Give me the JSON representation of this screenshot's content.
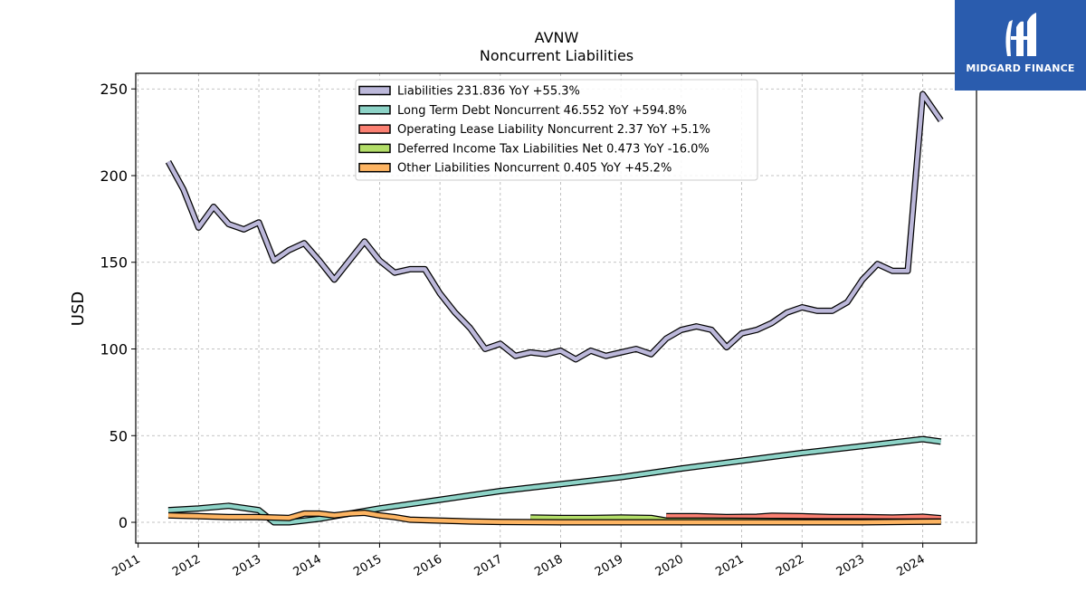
{
  "brand": {
    "name": "MIDGARD FINANCE",
    "bg_color": "#2a5cae"
  },
  "chart_data": {
    "type": "line",
    "title": "AVNW",
    "subtitle": "Noncurrent  Liabilities",
    "ylabel": "USD",
    "xlabel": "",
    "ylim": [
      -12,
      259
    ],
    "xlim": [
      2010.96,
      2024.89
    ],
    "yticks": [
      0,
      50,
      100,
      150,
      200,
      250
    ],
    "xticks": [
      2011,
      2012,
      2013,
      2014,
      2015,
      2016,
      2017,
      2018,
      2019,
      2020,
      2021,
      2022,
      2023,
      2024
    ],
    "grid": true,
    "legend_position": "upper center",
    "series": [
      {
        "name": "Liabilities",
        "legend": "Liabilities  231.836 YoY +55.3%",
        "color": "#bcb8da",
        "points": [
          [
            2011.5,
            208
          ],
          [
            2011.75,
            192
          ],
          [
            2012.0,
            170
          ],
          [
            2012.25,
            182
          ],
          [
            2012.5,
            172
          ],
          [
            2012.75,
            169
          ],
          [
            2013.0,
            173
          ],
          [
            2013.25,
            151
          ],
          [
            2013.5,
            157
          ],
          [
            2013.75,
            161
          ],
          [
            2014.0,
            151
          ],
          [
            2014.25,
            140
          ],
          [
            2014.5,
            151
          ],
          [
            2014.75,
            162
          ],
          [
            2015.0,
            151
          ],
          [
            2015.25,
            144
          ],
          [
            2015.5,
            146
          ],
          [
            2015.75,
            146
          ],
          [
            2016.0,
            132
          ],
          [
            2016.25,
            121
          ],
          [
            2016.5,
            112
          ],
          [
            2016.75,
            100
          ],
          [
            2017.0,
            103
          ],
          [
            2017.25,
            96
          ],
          [
            2017.5,
            98
          ],
          [
            2017.75,
            97
          ],
          [
            2018.0,
            99
          ],
          [
            2018.25,
            94
          ],
          [
            2018.5,
            99
          ],
          [
            2018.75,
            96
          ],
          [
            2019.0,
            98
          ],
          [
            2019.25,
            100
          ],
          [
            2019.5,
            97
          ],
          [
            2019.75,
            106
          ],
          [
            2020.0,
            111
          ],
          [
            2020.25,
            113
          ],
          [
            2020.5,
            111
          ],
          [
            2020.75,
            101
          ],
          [
            2021.0,
            109
          ],
          [
            2021.25,
            111
          ],
          [
            2021.5,
            115
          ],
          [
            2021.75,
            121
          ],
          [
            2022.0,
            124
          ],
          [
            2022.25,
            122
          ],
          [
            2022.5,
            122
          ],
          [
            2022.75,
            127
          ],
          [
            2023.0,
            140
          ],
          [
            2023.25,
            149
          ],
          [
            2023.5,
            145
          ],
          [
            2023.75,
            145
          ],
          [
            2024.0,
            247
          ],
          [
            2024.3,
            231.836
          ]
        ]
      },
      {
        "name": "Long Term Debt Noncurrent",
        "legend": "Long Term Debt Noncurrent  46.552 YoY +594.8%",
        "color": "#8dd3c7",
        "points": [
          [
            2011.5,
            7
          ],
          [
            2012.0,
            8
          ],
          [
            2012.5,
            9.5
          ],
          [
            2013.0,
            7
          ],
          [
            2013.25,
            0
          ],
          [
            2013.5,
            0
          ],
          [
            2014.0,
            2
          ],
          [
            2014.5,
            5
          ],
          [
            2015.0,
            8
          ],
          [
            2016.0,
            13
          ],
          [
            2017.0,
            18
          ],
          [
            2018.0,
            22
          ],
          [
            2019.0,
            26
          ],
          [
            2020.0,
            31
          ],
          [
            2021.0,
            35.5
          ],
          [
            2022.0,
            40
          ],
          [
            2023.0,
            44
          ],
          [
            2024.0,
            48
          ],
          [
            2024.3,
            46.552
          ]
        ]
      },
      {
        "name": "Operating Lease Liability Noncurrent",
        "legend": "Operating Lease Liability Noncurrent  2.37 YoY +5.1%",
        "color": "#fb8072",
        "points": [
          [
            2019.75,
            3.5
          ],
          [
            2020.25,
            3.5
          ],
          [
            2020.75,
            3.0
          ],
          [
            2021.25,
            3.2
          ],
          [
            2021.5,
            3.8
          ],
          [
            2022.0,
            3.5
          ],
          [
            2022.5,
            3.0
          ],
          [
            2023.0,
            3.0
          ],
          [
            2023.5,
            2.8
          ],
          [
            2024.0,
            3.2
          ],
          [
            2024.3,
            2.37
          ]
        ]
      },
      {
        "name": "Deferred Income Tax Liabilities Net",
        "legend": "Deferred Income Tax Liabilities Net  0.473 YoY -16.0%",
        "color": "#b3de69",
        "points": [
          [
            2017.5,
            2.8
          ],
          [
            2018.0,
            2.5
          ],
          [
            2018.5,
            2.5
          ],
          [
            2019.0,
            2.8
          ],
          [
            2019.5,
            2.5
          ],
          [
            2019.75,
            1.0
          ],
          [
            2020.5,
            1.0
          ],
          [
            2021.5,
            0.8
          ],
          [
            2022.5,
            0.6
          ],
          [
            2023.5,
            0.5
          ],
          [
            2024.3,
            0.473
          ]
        ]
      },
      {
        "name": "Other Liabilities Noncurrent",
        "legend": "Other Liabilities Noncurrent  0.405 YoY +45.2%",
        "color": "#fdb462",
        "points": [
          [
            2011.5,
            4
          ],
          [
            2012.0,
            3.5
          ],
          [
            2012.5,
            3
          ],
          [
            2013.0,
            3
          ],
          [
            2013.5,
            2.5
          ],
          [
            2013.75,
            5
          ],
          [
            2014.0,
            5
          ],
          [
            2014.25,
            4
          ],
          [
            2014.5,
            5
          ],
          [
            2014.75,
            5.5
          ],
          [
            2015.0,
            4
          ],
          [
            2015.25,
            3
          ],
          [
            2015.5,
            1.5
          ],
          [
            2016.0,
            1.0
          ],
          [
            2016.5,
            0.5
          ],
          [
            2017.0,
            0.2
          ],
          [
            2018.0,
            0
          ],
          [
            2019.0,
            0
          ],
          [
            2020.0,
            0
          ],
          [
            2021.0,
            0
          ],
          [
            2022.0,
            0
          ],
          [
            2023.0,
            0
          ],
          [
            2024.3,
            0.405
          ]
        ]
      }
    ]
  }
}
